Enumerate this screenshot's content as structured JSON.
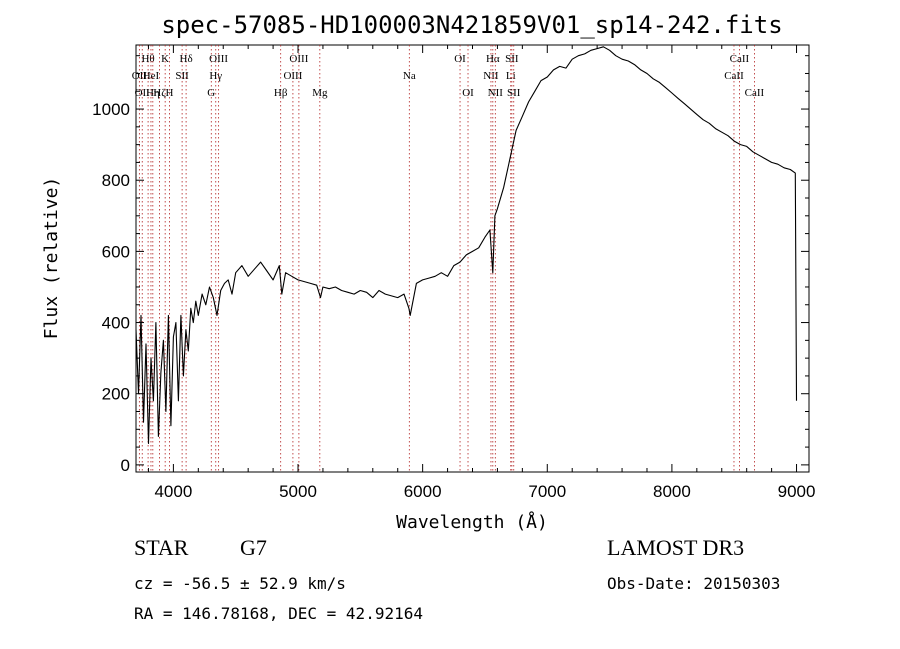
{
  "chart_data": {
    "type": "line",
    "title": "spec-57085-HD100003N421859V01_sp14-242.fits",
    "xlabel": "Wavelength (Å)",
    "ylabel": "Flux (relative)",
    "xlim": [
      3700,
      9100
    ],
    "ylim": [
      -20,
      1180
    ],
    "x_ticks": [
      4000,
      5000,
      6000,
      7000,
      8000,
      9000
    ],
    "y_ticks": [
      0,
      200,
      400,
      600,
      800,
      1000
    ],
    "series": [
      {
        "name": "flux",
        "x": [
          3700,
          3720,
          3740,
          3760,
          3780,
          3800,
          3820,
          3840,
          3860,
          3880,
          3900,
          3920,
          3940,
          3960,
          3980,
          4000,
          4020,
          4040,
          4060,
          4080,
          4100,
          4120,
          4140,
          4160,
          4180,
          4200,
          4230,
          4260,
          4290,
          4320,
          4350,
          4380,
          4410,
          4440,
          4470,
          4500,
          4550,
          4600,
          4650,
          4700,
          4750,
          4800,
          4850,
          4870,
          4900,
          4950,
          5000,
          5050,
          5100,
          5150,
          5180,
          5200,
          5250,
          5300,
          5350,
          5400,
          5450,
          5500,
          5550,
          5600,
          5650,
          5700,
          5750,
          5800,
          5850,
          5890,
          5900,
          5950,
          6000,
          6050,
          6100,
          6150,
          6200,
          6250,
          6300,
          6350,
          6400,
          6450,
          6500,
          6540,
          6563,
          6580,
          6600,
          6650,
          6700,
          6750,
          6800,
          6850,
          6900,
          6950,
          7000,
          7050,
          7100,
          7150,
          7200,
          7250,
          7300,
          7350,
          7400,
          7450,
          7500,
          7550,
          7600,
          7650,
          7700,
          7750,
          7800,
          7850,
          7900,
          7950,
          8000,
          8050,
          8100,
          8150,
          8200,
          8250,
          8300,
          8350,
          8400,
          8450,
          8500,
          8550,
          8600,
          8650,
          8700,
          8750,
          8800,
          8850,
          8900,
          8950,
          8990,
          9000
        ],
        "y": [
          380,
          200,
          420,
          120,
          340,
          60,
          300,
          180,
          400,
          80,
          260,
          350,
          150,
          420,
          110,
          360,
          400,
          180,
          420,
          250,
          380,
          320,
          440,
          400,
          460,
          420,
          480,
          450,
          500,
          470,
          420,
          490,
          510,
          520,
          480,
          540,
          560,
          530,
          550,
          570,
          545,
          520,
          560,
          480,
          540,
          530,
          520,
          515,
          510,
          505,
          470,
          500,
          495,
          500,
          490,
          485,
          480,
          490,
          485,
          470,
          490,
          480,
          475,
          470,
          480,
          440,
          420,
          510,
          520,
          525,
          530,
          540,
          530,
          560,
          570,
          590,
          600,
          610,
          640,
          660,
          540,
          700,
          720,
          780,
          860,
          940,
          980,
          1020,
          1050,
          1080,
          1090,
          1110,
          1120,
          1115,
          1140,
          1150,
          1155,
          1165,
          1170,
          1175,
          1165,
          1150,
          1140,
          1135,
          1125,
          1110,
          1100,
          1085,
          1075,
          1060,
          1045,
          1030,
          1015,
          1000,
          985,
          970,
          960,
          945,
          935,
          925,
          910,
          900,
          895,
          880,
          870,
          860,
          850,
          845,
          835,
          830,
          820,
          180
        ],
        "color": "#000000"
      }
    ],
    "lines": [
      {
        "wave": 3727,
        "label": "OII",
        "row": 2
      },
      {
        "wave": 3750,
        "label": "OII",
        "row": 3
      },
      {
        "wave": 3797,
        "label": "Hθ",
        "row": 1
      },
      {
        "wave": 3820,
        "label": "HeI",
        "row": 2
      },
      {
        "wave": 3835,
        "label": "Hη",
        "row": 3
      },
      {
        "wave": 3889,
        "label": "Hζ",
        "row": 3
      },
      {
        "wave": 3934,
        "label": "K",
        "row": 1
      },
      {
        "wave": 3969,
        "label": "H",
        "row": 3
      },
      {
        "wave": 4070,
        "label": "SII",
        "row": 2
      },
      {
        "wave": 4102,
        "label": "Hδ",
        "row": 1
      },
      {
        "wave": 4304,
        "label": "G",
        "row": 3
      },
      {
        "wave": 4340,
        "label": "Hγ",
        "row": 2
      },
      {
        "wave": 4363,
        "label": "OIII",
        "row": 1
      },
      {
        "wave": 4861,
        "label": "Hβ",
        "row": 3
      },
      {
        "wave": 4959,
        "label": "OIII",
        "row": 2
      },
      {
        "wave": 5007,
        "label": "OIII",
        "row": 1
      },
      {
        "wave": 5175,
        "label": "Mg",
        "row": 3
      },
      {
        "wave": 5893,
        "label": "Na",
        "row": 2
      },
      {
        "wave": 6300,
        "label": "OI",
        "row": 1
      },
      {
        "wave": 6364,
        "label": "OI",
        "row": 3
      },
      {
        "wave": 6548,
        "label": "NII",
        "row": 2
      },
      {
        "wave": 6563,
        "label": "Hα",
        "row": 1
      },
      {
        "wave": 6583,
        "label": "NII",
        "row": 3
      },
      {
        "wave": 6707,
        "label": "Li",
        "row": 2
      },
      {
        "wave": 6716,
        "label": "SII",
        "row": 1
      },
      {
        "wave": 6731,
        "label": "SII",
        "row": 3
      },
      {
        "wave": 8498,
        "label": "CaII",
        "row": 2
      },
      {
        "wave": 8542,
        "label": "CaII",
        "row": 1
      },
      {
        "wave": 8662,
        "label": "CaII",
        "row": 3
      }
    ]
  },
  "info": {
    "object_type": "STAR",
    "subclass": "G7",
    "survey": "LAMOST DR3",
    "redshift": "cz = -56.5 ± 52.9 km/s",
    "obs_date": "Obs-Date: 20150303",
    "coords": "RA = 146.78168, DEC =  42.92164"
  }
}
